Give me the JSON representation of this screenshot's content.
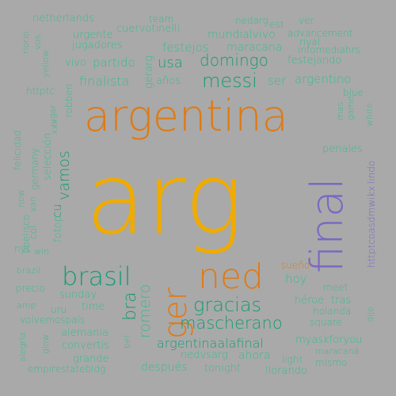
{
  "palette": {
    "background": "#a9a9a9",
    "light_green": "#3cba8e",
    "dark_green": "#179c73",
    "orange": "#e07a14",
    "gold": "#f0ab00",
    "purple": "#7b68c4"
  },
  "words": [
    {
      "text": "arg",
      "color": "gold"
    },
    {
      "text": "argentina",
      "color": "orange"
    },
    {
      "text": "final",
      "color": "purple"
    },
    {
      "text": "ned",
      "color": "orange"
    },
    {
      "text": "ger",
      "color": "orange"
    },
    {
      "text": "brasil",
      "color": "dark_green"
    },
    {
      "text": "messi",
      "color": "dark_green"
    },
    {
      "text": "gracias",
      "color": "dark_green"
    },
    {
      "text": "mascherano",
      "color": "dark_green"
    },
    {
      "text": "vamos",
      "color": "dark_green"
    },
    {
      "text": "domingo",
      "color": "dark_green"
    },
    {
      "text": "bra",
      "color": "dark_green"
    },
    {
      "text": "romero",
      "color": "light_green"
    },
    {
      "text": "argentinaalafinal",
      "color": "dark_green"
    },
    {
      "text": "finalista",
      "color": "light_green"
    },
    {
      "text": "usa",
      "color": "dark_green"
    },
    {
      "text": "ser",
      "color": "light_green"
    },
    {
      "text": "argentino",
      "color": "light_green"
    },
    {
      "text": "partido",
      "color": "light_green"
    },
    {
      "text": "festejos",
      "color": "light_green"
    },
    {
      "text": "festejando",
      "color": "light_green"
    },
    {
      "text": "maracana",
      "color": "light_green"
    },
    {
      "text": "mundialvivo",
      "color": "light_green"
    },
    {
      "text": "cuervotinelli",
      "color": "light_green"
    },
    {
      "text": "nedarg",
      "color": "light_green"
    },
    {
      "text": "team",
      "color": "light_green"
    },
    {
      "text": "netherlands",
      "color": "light_green"
    },
    {
      "text": "urgente",
      "color": "light_green"
    },
    {
      "text": "jugadores",
      "color": "light_green"
    },
    {
      "text": "vivo",
      "color": "light_green"
    },
    {
      "text": "años",
      "color": "light_green"
    },
    {
      "text": "gerarg",
      "color": "light_green"
    },
    {
      "text": "est",
      "color": "light_green"
    },
    {
      "text": "ver",
      "color": "light_green"
    },
    {
      "text": "advancement",
      "color": "light_green"
    },
    {
      "text": "rival",
      "color": "light_green"
    },
    {
      "text": "infomediahrs",
      "color": "light_green"
    },
    {
      "text": "blue",
      "color": "light_green"
    },
    {
      "text": "game",
      "color": "light_green"
    },
    {
      "text": "mas",
      "color": "light_green"
    },
    {
      "text": "white",
      "color": "light_green"
    },
    {
      "text": "penales",
      "color": "light_green"
    },
    {
      "text": "httptcoasdmwikx",
      "color": "purple"
    },
    {
      "text": "lindo",
      "color": "purple"
    },
    {
      "text": "riorio",
      "color": "light_green"
    },
    {
      "text": "vos",
      "color": "light_green"
    },
    {
      "text": "yellow",
      "color": "light_green"
    },
    {
      "text": "httptc",
      "color": "light_green"
    },
    {
      "text": "jugar",
      "color": "light_green"
    },
    {
      "text": "robben",
      "color": "light_green"
    },
    {
      "text": "xxx",
      "color": "light_green"
    },
    {
      "text": "felicidad",
      "color": "light_green"
    },
    {
      "text": "germany",
      "color": "light_green"
    },
    {
      "text": "selección",
      "color": "light_green"
    },
    {
      "text": "now",
      "color": "light_green"
    },
    {
      "text": "van",
      "color": "light_green"
    },
    {
      "text": "cu",
      "color": "dark_green"
    },
    {
      "text": "obelisco",
      "color": "light_green"
    },
    {
      "text": "col",
      "color": "light_green"
    },
    {
      "text": "fotop",
      "color": "light_green"
    },
    {
      "text": "nyc",
      "color": "light_green"
    },
    {
      "text": "win",
      "color": "light_green"
    },
    {
      "text": "brazil",
      "color": "light_green"
    },
    {
      "text": "precio",
      "color": "light_green"
    },
    {
      "text": "amp",
      "color": "light_green"
    },
    {
      "text": "uru",
      "color": "light_green"
    },
    {
      "text": "sunday",
      "color": "light_green"
    },
    {
      "text": "time",
      "color": "light_green"
    },
    {
      "text": "volvemospaís",
      "color": "light_green"
    },
    {
      "text": "alegría",
      "color": "light_green"
    },
    {
      "text": "glow",
      "color": "light_green"
    },
    {
      "text": "alemania",
      "color": "light_green"
    },
    {
      "text": "convertis",
      "color": "light_green"
    },
    {
      "text": "grande",
      "color": "light_green"
    },
    {
      "text": "empirestatebldg",
      "color": "light_green"
    },
    {
      "text": "después",
      "color": "light_green"
    },
    {
      "text": "tonight",
      "color": "light_green"
    },
    {
      "text": "bel",
      "color": "light_green"
    },
    {
      "text": "nedvsarg",
      "color": "light_green"
    },
    {
      "text": "ahora",
      "color": "light_green"
    },
    {
      "text": "llorando",
      "color": "light_green"
    },
    {
      "text": "light",
      "color": "light_green"
    },
    {
      "text": "mismo",
      "color": "light_green"
    },
    {
      "text": "maracaná",
      "color": "light_green"
    },
    {
      "text": "myaskforyou",
      "color": "light_green"
    },
    {
      "text": "square",
      "color": "light_green"
    },
    {
      "text": "holanda",
      "color": "light_green"
    },
    {
      "text": "héroe",
      "color": "light_green"
    },
    {
      "text": "tras",
      "color": "light_green"
    },
    {
      "text": "meet",
      "color": "light_green"
    },
    {
      "text": "hoy",
      "color": "light_green"
    },
    {
      "text": "sueño",
      "color": "orange"
    },
    {
      "text": "dijo",
      "color": "light_green"
    }
  ]
}
